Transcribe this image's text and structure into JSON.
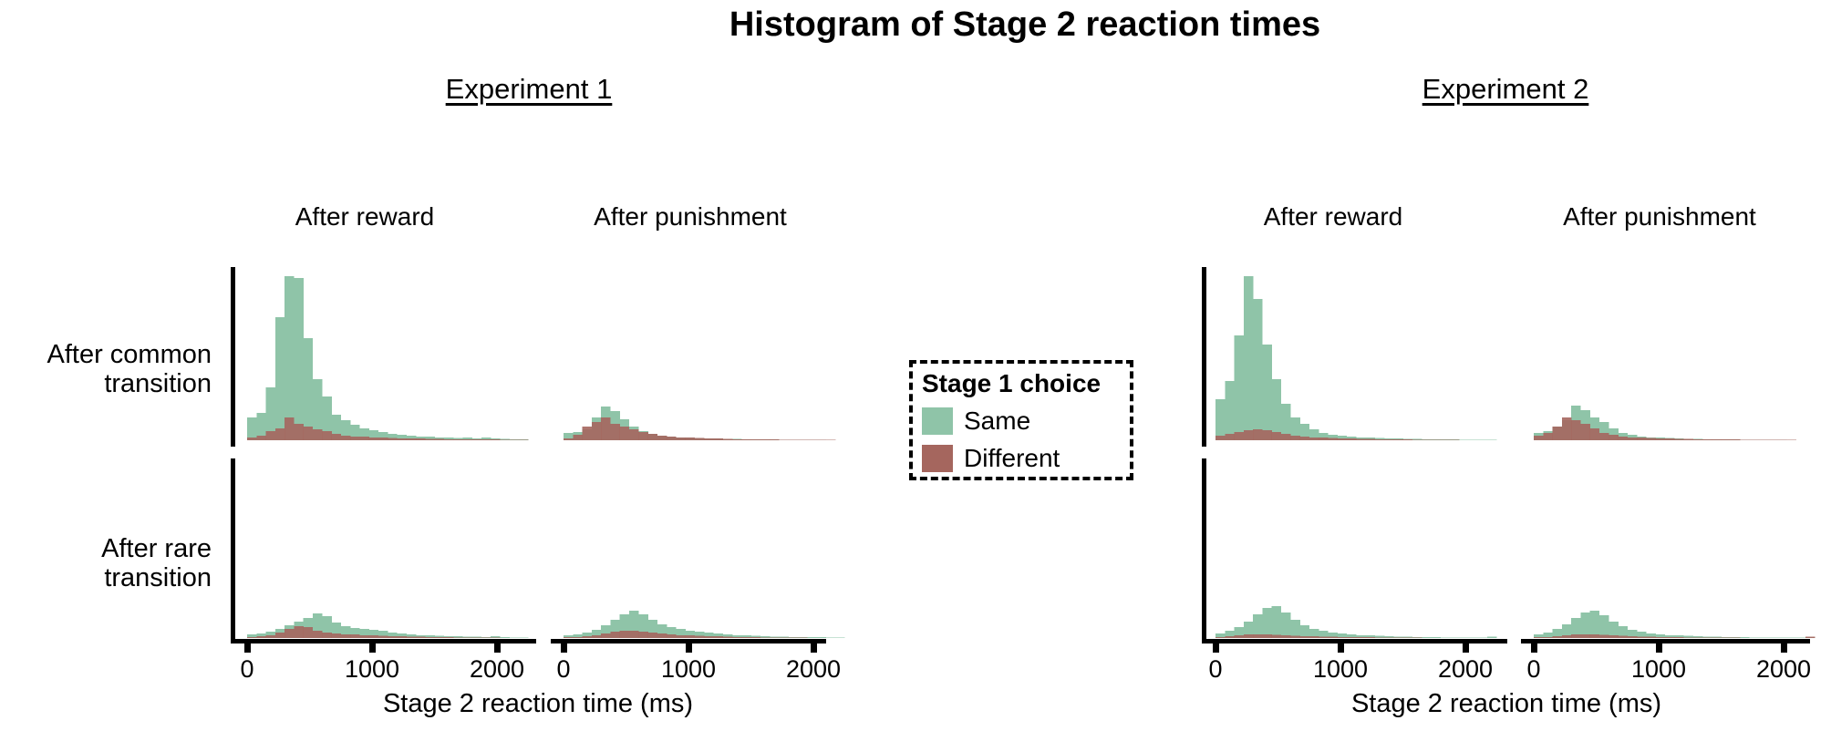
{
  "title": "Histogram of Stage 2 reaction times",
  "axis": {
    "x_label": "Stage 2 reaction time (ms)",
    "x_ticks": [
      "0",
      "1000",
      "2000"
    ],
    "x_tick_values_ms": [
      0,
      1000,
      2000
    ]
  },
  "row_labels": [
    {
      "line1": "After common",
      "line2": "transition"
    },
    {
      "line1": "After rare",
      "line2": "transition"
    }
  ],
  "experiments": [
    {
      "label": "Experiment 1",
      "columns": [
        "After reward",
        "After punishment"
      ]
    },
    {
      "label": "Experiment 2",
      "columns": [
        "After reward",
        "After punishment"
      ]
    }
  ],
  "legend": {
    "title": "Stage 1 choice",
    "items": [
      {
        "label": "Same",
        "color": "#8fc4a8"
      },
      {
        "label": "Different",
        "color": "#a5665e"
      }
    ]
  },
  "colors": {
    "same": "#8fc4a8",
    "different": "#a5665e",
    "axis": "#000000",
    "text": "#000000",
    "background": "#ffffff"
  },
  "chart_data": {
    "type": "bar",
    "subtype": "overlaid reaction-time histograms, 2 rows (transition) x 2 columns (outcome) per experiment",
    "x_unit": "ms",
    "bin_start_ms": 0,
    "bin_width_ms": 75,
    "x_range_ms": [
      0,
      2250
    ],
    "x_axis_ticks_ms": [
      0,
      1000,
      2000
    ],
    "y_unit": "relative frequency (arbitrary units; no y-axis ticks shown)",
    "series_names": [
      "Same",
      "Different"
    ],
    "panels": [
      {
        "experiment": "Experiment 1",
        "transition": "After common transition",
        "outcome": "After reward",
        "exp_index": 0,
        "row_index": 0,
        "col_index": 0,
        "same": [
          25,
          30,
          58,
          135,
          180,
          178,
          112,
          67,
          48,
          28,
          22,
          17,
          13,
          11,
          9,
          7,
          6,
          5,
          4,
          4,
          3,
          3,
          2.5,
          3,
          2,
          3,
          2,
          1.5,
          1,
          1
        ],
        "different": [
          3,
          5,
          10,
          13,
          25,
          18,
          15,
          12,
          10,
          7,
          5,
          4,
          4,
          3,
          3,
          2.5,
          2,
          2,
          2,
          1.5,
          1.5,
          1,
          1,
          1,
          1,
          1,
          1,
          0.5,
          0.5,
          0.5
        ]
      },
      {
        "experiment": "Experiment 1",
        "transition": "After common transition",
        "outcome": "After punishment",
        "exp_index": 0,
        "row_index": 0,
        "col_index": 1,
        "same": [
          8,
          9,
          12,
          25,
          37,
          32,
          23,
          15,
          10,
          7,
          5,
          4,
          3,
          3,
          2.5,
          2,
          2,
          1.5,
          1.5,
          1,
          1,
          1,
          1,
          0.5,
          0.5,
          0.5,
          0.5,
          0.5,
          0,
          0
        ],
        "different": [
          2,
          6,
          15,
          20,
          25,
          18,
          15,
          12,
          9,
          7,
          5,
          4,
          3,
          3,
          2.5,
          2,
          2,
          1.5,
          1,
          1,
          1,
          1,
          1,
          0.5,
          0.5,
          0.5,
          0.5,
          0.5,
          0.5,
          0
        ]
      },
      {
        "experiment": "Experiment 2",
        "transition": "After common transition",
        "outcome": "After reward",
        "exp_index": 1,
        "row_index": 0,
        "col_index": 0,
        "same": [
          45,
          65,
          115,
          180,
          155,
          105,
          67,
          40,
          25,
          18,
          12,
          8,
          6,
          5,
          4,
          3,
          3,
          2.5,
          2,
          2,
          1.5,
          1.5,
          1,
          1,
          1,
          1,
          0.5,
          0.5,
          0.5,
          0.5
        ],
        "different": [
          5,
          7,
          9,
          11,
          12,
          11,
          9,
          7,
          5,
          4,
          3,
          3,
          2.5,
          2,
          2,
          1.5,
          1.5,
          1,
          1,
          1,
          1,
          0.5,
          0.5,
          0.5,
          0.5,
          0.5,
          0,
          0,
          0,
          0
        ]
      },
      {
        "experiment": "Experiment 2",
        "transition": "After common transition",
        "outcome": "After punishment",
        "exp_index": 1,
        "row_index": 0,
        "col_index": 1,
        "same": [
          8,
          10,
          15,
          22,
          38,
          33,
          25,
          20,
          13,
          8,
          6,
          4,
          3,
          3,
          2.5,
          2,
          1.5,
          1.5,
          1,
          1,
          1,
          1,
          0.5,
          0.5,
          0.5,
          0.5,
          0.5,
          0,
          0,
          0
        ],
        "different": [
          5,
          8,
          15,
          25,
          22,
          18,
          13,
          8,
          6,
          4,
          3,
          3,
          2.5,
          2,
          2,
          1.5,
          1.5,
          1,
          1,
          1,
          1,
          1,
          0.5,
          0.5,
          0.5,
          0.5,
          0.5,
          0.5,
          0,
          0
        ]
      },
      {
        "experiment": "Experiment 1",
        "transition": "After rare transition",
        "outcome": "After reward",
        "exp_index": 0,
        "row_index": 1,
        "col_index": 0,
        "same": [
          4,
          5,
          7,
          10,
          14,
          18,
          22,
          27,
          24,
          17,
          13,
          11,
          10,
          9,
          8,
          6,
          5,
          4,
          3,
          3,
          2.5,
          2,
          2,
          1.5,
          1.5,
          1,
          2,
          1,
          0.5,
          0.5
        ],
        "different": [
          1,
          2,
          3,
          6,
          10,
          13,
          12,
          8,
          6,
          5,
          4,
          4,
          3,
          3,
          2.5,
          2,
          2,
          1.5,
          1.5,
          1,
          1,
          1,
          0.5,
          0.5,
          0.5,
          0.5,
          0.5,
          0,
          0,
          0
        ]
      },
      {
        "experiment": "Experiment 1",
        "transition": "After rare transition",
        "outcome": "After punishment",
        "exp_index": 0,
        "row_index": 1,
        "col_index": 1,
        "same": [
          3,
          4,
          6,
          9,
          14,
          20,
          26,
          30,
          26,
          20,
          15,
          12,
          10,
          8,
          7,
          6,
          5,
          4,
          3,
          3,
          2.5,
          2,
          1.5,
          1.5,
          1,
          1,
          1,
          1,
          0.5,
          0.5
        ],
        "different": [
          1,
          1,
          2,
          3,
          5,
          7,
          8,
          8,
          7,
          6,
          5,
          4,
          3,
          3,
          2.5,
          2,
          2,
          1.5,
          1,
          1,
          1,
          0.5,
          0.5,
          0.5,
          0.5,
          0.5,
          0,
          0,
          0,
          0
        ]
      },
      {
        "experiment": "Experiment 2",
        "transition": "After rare transition",
        "outcome": "After reward",
        "exp_index": 1,
        "row_index": 1,
        "col_index": 0,
        "same": [
          5,
          8,
          12,
          18,
          26,
          33,
          35,
          28,
          20,
          14,
          10,
          8,
          6,
          5,
          4,
          3,
          3,
          2.5,
          2,
          1.5,
          1.5,
          1,
          1,
          1,
          0.5,
          0.5,
          0.5,
          0.5,
          0.5,
          1.5
        ],
        "different": [
          1,
          2,
          3,
          4,
          4,
          4,
          3.5,
          3,
          2.5,
          2,
          2,
          1.5,
          1.5,
          1,
          1,
          1,
          1,
          0.5,
          0.5,
          0.5,
          0.5,
          0.5,
          0,
          0,
          0,
          0,
          0,
          0,
          0,
          0
        ]
      },
      {
        "experiment": "Experiment 2",
        "transition": "After rare transition",
        "outcome": "After punishment",
        "exp_index": 1,
        "row_index": 1,
        "col_index": 1,
        "same": [
          4,
          6,
          10,
          15,
          22,
          28,
          30,
          25,
          18,
          13,
          9,
          7,
          5,
          4,
          3,
          3,
          2.5,
          2,
          1.5,
          1.5,
          1,
          1,
          1,
          0.5,
          0.5,
          0.5,
          0.5,
          0.5,
          0.5,
          1
        ],
        "different": [
          1,
          1,
          2,
          3,
          4,
          4,
          4,
          3.5,
          3,
          2.5,
          2,
          1.5,
          1.5,
          1,
          1,
          1,
          0.5,
          0.5,
          0.5,
          0.5,
          0.5,
          0.5,
          0,
          0,
          0,
          0,
          0,
          0,
          0,
          1.5
        ]
      }
    ]
  }
}
